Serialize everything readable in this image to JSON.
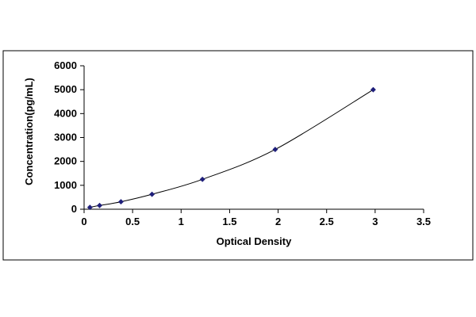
{
  "chart_data": {
    "type": "scatter",
    "title": "",
    "xlabel": "Optical Density",
    "ylabel": "Concentration(pg/mL)",
    "xlim": [
      0,
      3.5
    ],
    "ylim": [
      0,
      6000
    ],
    "x_ticks": [
      "0",
      "0.5",
      "1",
      "1.5",
      "2",
      "2.5",
      "3",
      "3.5"
    ],
    "y_ticks": [
      "0",
      "1000",
      "2000",
      "3000",
      "4000",
      "5000",
      "6000"
    ],
    "grid": false,
    "legend": "none",
    "marker_color": "#1f1f7a",
    "line_color": "#000000",
    "fit": "smooth trendline",
    "series": [
      {
        "x": [
          0.06,
          0.16,
          0.38,
          0.7,
          1.22,
          1.97,
          2.98
        ],
        "y": [
          78,
          156,
          312,
          625,
          1250,
          2500,
          5000
        ]
      }
    ]
  }
}
